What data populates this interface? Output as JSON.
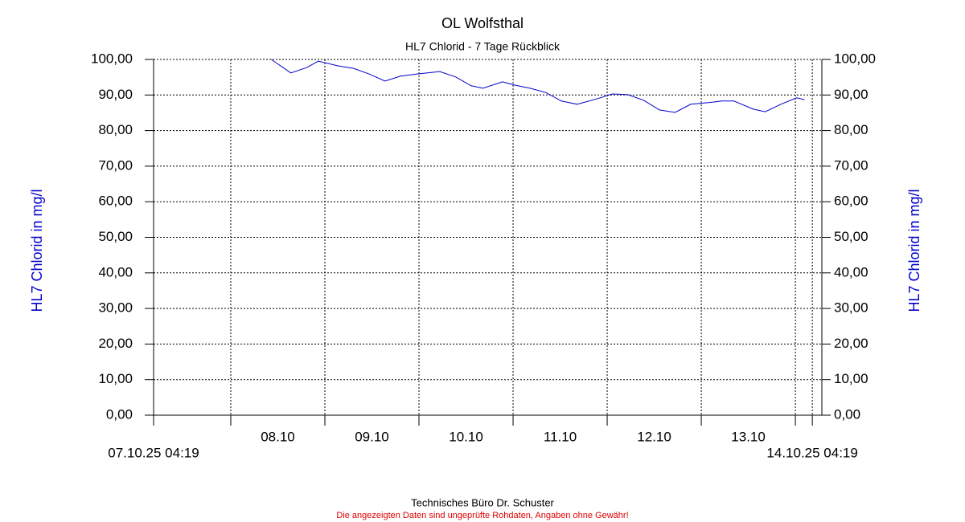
{
  "chart_data": {
    "type": "line",
    "title": "OL Wolfsthal",
    "subtitle": "HL7 Chlorid - 7 Tage Rückblick",
    "ylabel": "HL7 Chlorid in mg/l",
    "y2label": "HL7 Chlorid in mg/l",
    "footer": "Technisches Büro Dr. Schuster",
    "disclaimer": "Die angezeigten Daten sind ungeprüfte Rohdaten, Angaben ohne Gewähr!",
    "grid": true,
    "xlim": [
      "2025-10-07T04:19",
      "2025-10-14T06:45"
    ],
    "xrange_labels": [
      {
        "value": "2025-10-07T04:19",
        "label": "07.10.25 04:19"
      },
      {
        "value": "2025-10-14T04:19",
        "label": "14.10.25 04:19"
      }
    ],
    "xticks": [
      {
        "value": "2025-10-08T00:00",
        "label": "08.10"
      },
      {
        "value": "2025-10-09T00:00",
        "label": "09.10"
      },
      {
        "value": "2025-10-10T00:00",
        "label": "10.10"
      },
      {
        "value": "2025-10-11T00:00",
        "label": "11.10"
      },
      {
        "value": "2025-10-12T00:00",
        "label": "12.10"
      },
      {
        "value": "2025-10-13T00:00",
        "label": "13.10"
      },
      "2025-10-14T00:00"
    ],
    "ylim": [
      0,
      100
    ],
    "yticks": [
      {
        "value": 0,
        "label": "0,00"
      },
      {
        "value": 10,
        "label": "10,00"
      },
      {
        "value": 20,
        "label": "20,00"
      },
      {
        "value": 30,
        "label": "30,00"
      },
      {
        "value": 40,
        "label": "40,00"
      },
      {
        "value": 50,
        "label": "50,00"
      },
      {
        "value": 60,
        "label": "60,00"
      },
      {
        "value": 70,
        "label": "70,00"
      },
      {
        "value": 80,
        "label": "80,00"
      },
      {
        "value": 90,
        "label": "90,00"
      },
      {
        "value": 100,
        "label": "100,00"
      }
    ],
    "y2lim": [
      0,
      100
    ],
    "y2ticks": [
      {
        "value": 0,
        "label": "0,00"
      },
      {
        "value": 10,
        "label": "10,00"
      },
      {
        "value": 20,
        "label": "20,00"
      },
      {
        "value": 30,
        "label": "30,00"
      },
      {
        "value": 40,
        "label": "40,00"
      },
      {
        "value": 50,
        "label": "50,00"
      },
      {
        "value": 60,
        "label": "60,00"
      },
      {
        "value": 70,
        "label": "70,00"
      },
      {
        "value": 80,
        "label": "80,00"
      },
      {
        "value": 90,
        "label": "90,00"
      },
      {
        "value": 100,
        "label": "100,00"
      }
    ],
    "x": [
      "2025-10-08T10:19",
      "2025-10-08T15:19",
      "2025-10-08T19:19",
      "2025-10-08T22:19",
      "2025-10-09T03:19",
      "2025-10-09T07:19",
      "2025-10-09T11:19",
      "2025-10-09T15:19",
      "2025-10-09T19:19",
      "2025-10-09T23:19",
      "2025-10-10T05:19",
      "2025-10-10T09:19",
      "2025-10-10T13:19",
      "2025-10-10T16:19",
      "2025-10-10T21:19",
      "2025-10-11T00:19",
      "2025-10-11T04:19",
      "2025-10-11T08:19",
      "2025-10-11T12:19",
      "2025-10-11T16:19",
      "2025-10-11T21:19",
      "2025-10-12T01:19",
      "2025-10-12T05:19",
      "2025-10-12T09:19",
      "2025-10-12T13:19",
      "2025-10-12T17:19",
      "2025-10-12T21:19",
      "2025-10-13T01:19",
      "2025-10-13T05:19",
      "2025-10-13T08:19",
      "2025-10-13T13:19",
      "2025-10-13T16:19",
      "2025-10-13T20:19",
      "2025-10-14T00:19",
      "2025-10-14T02:19"
    ],
    "series": [
      {
        "name": "HL7 Chlorid",
        "color": "#0000cc",
        "values": [
          100.0,
          96.2,
          97.7,
          99.5,
          98.2,
          97.5,
          95.9,
          93.9,
          95.3,
          95.9,
          96.6,
          95.1,
          92.6,
          91.9,
          93.7,
          92.8,
          91.9,
          90.7,
          88.3,
          87.4,
          88.9,
          90.3,
          90.1,
          88.5,
          85.8,
          85.1,
          87.4,
          87.8,
          88.3,
          88.3,
          86.0,
          85.3,
          87.4,
          89.2,
          88.7
        ]
      }
    ]
  }
}
